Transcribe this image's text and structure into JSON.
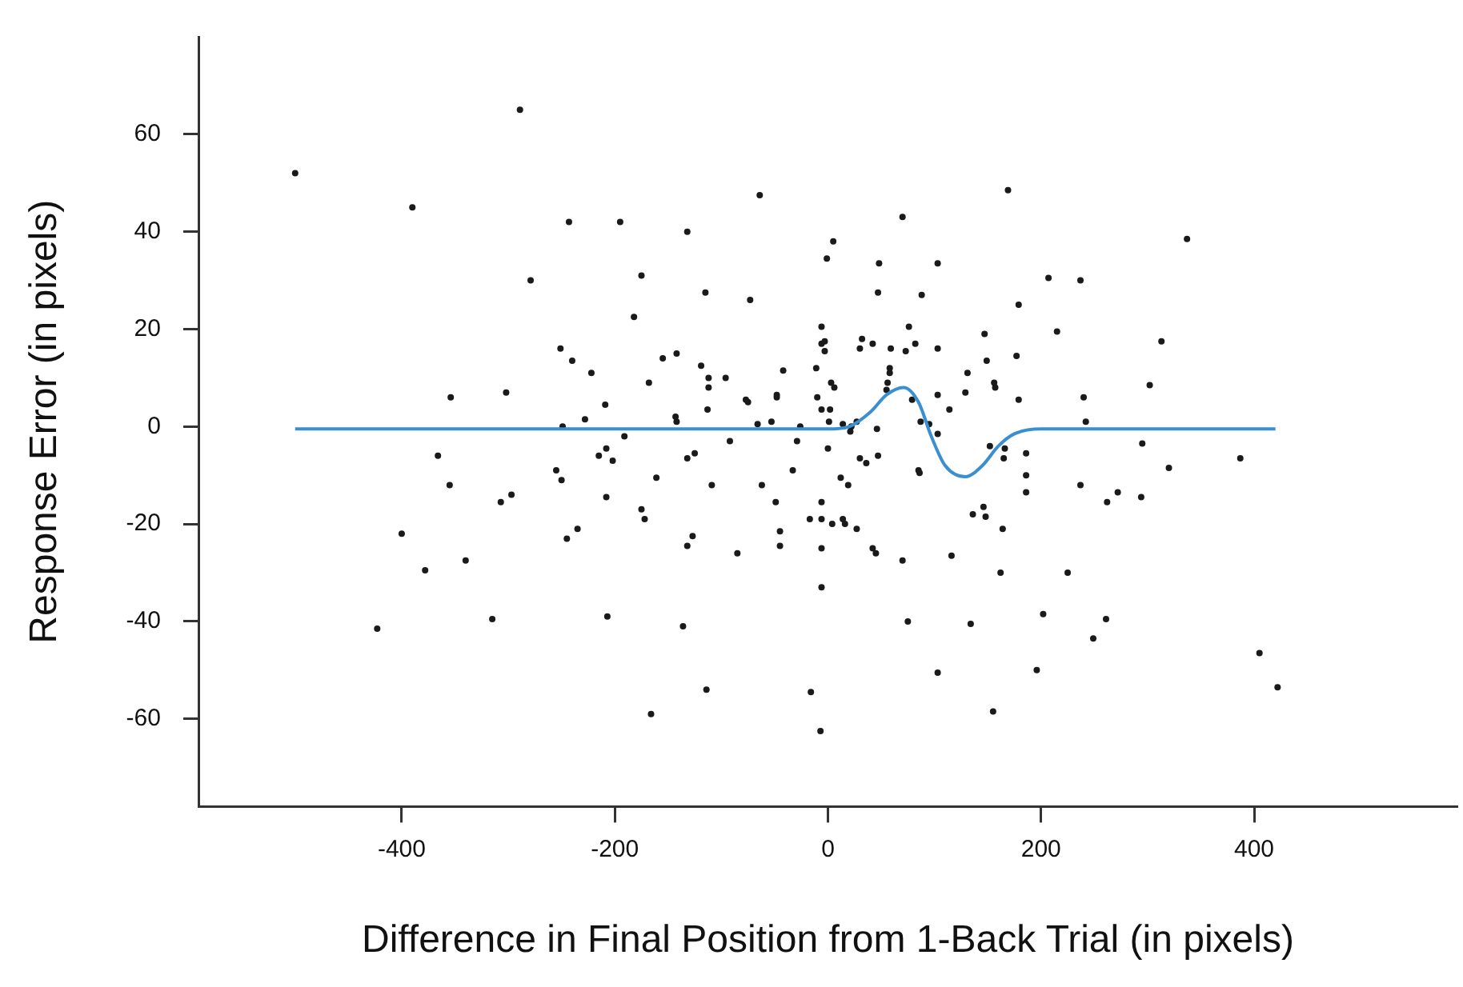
{
  "chart_data": {
    "type": "scatter",
    "xlabel": "Difference in Final Position from 1-Back Trial (in pixels)",
    "ylabel": "Response Error (in pixels)",
    "xlim": [
      -590,
      590
    ],
    "xticks": [
      -400,
      -200,
      0,
      200,
      400
    ],
    "ylim": [
      -78,
      80
    ],
    "yticks": [
      -60,
      -40,
      -20,
      0,
      20,
      40,
      60
    ],
    "series": [
      {
        "type": "scatter",
        "color": "#1a1a1a",
        "marker": "circle",
        "x": [
          -500,
          -289,
          -390,
          -243,
          -195,
          -279,
          -251,
          -240,
          -222,
          -354,
          -302,
          -209,
          -228,
          -249,
          -191,
          -366,
          -355,
          -215,
          -208,
          -202,
          -255,
          -250,
          -307,
          -297,
          -208,
          -400,
          -378,
          -340,
          -235,
          -245,
          -423,
          -315,
          -207,
          -64,
          -132,
          5,
          -1,
          70,
          169,
          207,
          179,
          -175,
          -182,
          -115,
          -73,
          48,
          103,
          47,
          88,
          -6,
          76,
          147,
          -155,
          -142,
          -168,
          -119,
          -112,
          -112,
          -96,
          -113,
          -77,
          -75,
          -48,
          -48,
          -42,
          -66,
          -53,
          -26,
          -10,
          -11,
          -6,
          -3,
          -3,
          3,
          6,
          -6,
          2,
          1,
          22,
          27,
          30,
          32,
          42,
          59,
          58,
          58,
          56,
          55,
          46,
          73,
          82,
          103,
          79,
          103,
          114,
          87,
          95,
          131,
          129,
          149,
          156,
          157,
          177,
          179,
          -143,
          -142,
          -132,
          -125,
          -161,
          -92,
          -109,
          -29,
          -33,
          -62,
          -49,
          -175,
          -172,
          -127,
          -132,
          -85,
          -45,
          -45,
          0,
          21,
          14,
          12,
          19,
          30,
          36,
          47,
          -6,
          -17,
          -6,
          4,
          14,
          16,
          27,
          -6,
          42,
          45,
          -6,
          70,
          116,
          85,
          86,
          103,
          136,
          146,
          148,
          164,
          162,
          152,
          166,
          165,
          186,
          186,
          186,
          -136,
          -114,
          -166,
          -16,
          -7,
          75,
          134,
          103,
          155,
          196,
          202,
          237,
          337,
          215,
          313,
          302,
          240,
          242,
          295,
          320,
          387,
          237,
          262,
          272,
          294,
          225,
          261,
          249,
          405,
          422
        ],
        "values": [
          52,
          65,
          45,
          42,
          42,
          30,
          16,
          13.5,
          11,
          6,
          7,
          4.5,
          1.5,
          0,
          -2,
          -6,
          -12,
          -6,
          -4.5,
          -7,
          -9,
          -11,
          -15.5,
          -14,
          -14.5,
          -22,
          -29.5,
          -27.5,
          -21,
          -23,
          -41.5,
          -39.5,
          -39,
          47.5,
          40,
          38,
          34.5,
          43,
          48.5,
          30.5,
          25,
          31,
          22.5,
          27.5,
          26,
          33.5,
          33.5,
          27.5,
          27,
          20.5,
          20.5,
          19,
          14,
          15,
          9,
          12.5,
          10,
          8,
          10,
          3.5,
          5.5,
          5,
          6.5,
          6,
          11.5,
          0.5,
          1,
          0,
          6,
          12,
          17,
          17.5,
          15.5,
          9,
          8,
          3.5,
          3.5,
          1,
          0,
          1,
          16,
          18,
          17,
          16,
          12,
          11,
          9,
          7.5,
          -0.5,
          15.5,
          17,
          16,
          5.5,
          6.5,
          3.5,
          1,
          0.5,
          11,
          7,
          13.5,
          9,
          8,
          14.5,
          5.5,
          2,
          1,
          -6.5,
          -5.5,
          -10.5,
          -3,
          -12,
          -3,
          -9,
          -12,
          -15.5,
          -17,
          -19,
          -22.5,
          -24.5,
          -26,
          -21.5,
          -24.5,
          -4.5,
          -1,
          0.5,
          -10.5,
          -12,
          -6.5,
          -7.5,
          -6,
          -15.5,
          -19,
          -19,
          -20,
          -19,
          -20,
          -21,
          -25,
          -25,
          -26,
          -33,
          -27.5,
          -26.5,
          -9,
          -9.5,
          -1.5,
          -18,
          -16.5,
          -18.5,
          -21,
          -30,
          -4,
          -4.5,
          -6.5,
          -5.5,
          -10,
          -13.5,
          -41,
          -54,
          -59,
          -54.5,
          -62.5,
          -40,
          -40.5,
          -50.5,
          -58.5,
          -50,
          -38.5,
          30,
          38.5,
          19.5,
          17.5,
          8.5,
          6,
          1,
          -3.5,
          -8.5,
          -6.5,
          -12,
          -15.5,
          -13.5,
          -14.5,
          -30,
          -39.5,
          -43.5,
          -46.5,
          -53.5
        ]
      },
      {
        "type": "line",
        "color": "#3a8fd0",
        "marker": "none",
        "line_style": "solid",
        "x": [
          -500,
          0,
          20,
          40,
          55,
          71,
          85,
          97,
          110,
          129,
          145,
          160,
          175,
          200,
          420
        ],
        "values": [
          -0.5,
          -0.5,
          0,
          3,
          6.5,
          8,
          5,
          -2,
          -8,
          -10.3,
          -8,
          -4,
          -1.5,
          -0.5,
          -0.5
        ]
      }
    ]
  }
}
